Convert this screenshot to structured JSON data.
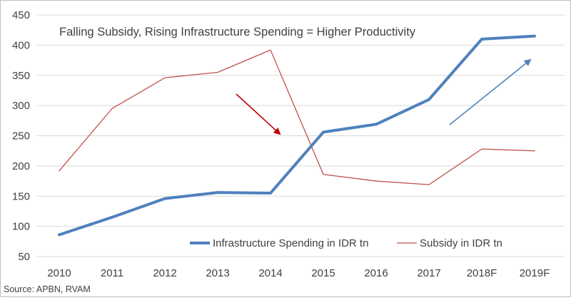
{
  "chart_data": {
    "type": "line",
    "title": "Falling Subsidy, Rising Infrastructure Spending  =  Higher Productivity",
    "source": "Source: APBN, RVAM",
    "categories": [
      "2010",
      "2011",
      "2012",
      "2013",
      "2014",
      "2015",
      "2016",
      "2017",
      "2018F",
      "2019F"
    ],
    "ylim": [
      50,
      450
    ],
    "yticks": [
      50,
      100,
      150,
      200,
      250,
      300,
      350,
      400,
      450
    ],
    "grid": true,
    "legend_position": "bottom-right",
    "series": [
      {
        "name": "Infrastructure Spending in IDR tn",
        "color": "#4f81bd",
        "values": [
          86,
          115,
          146,
          156,
          155,
          256,
          269,
          310,
          410,
          415
        ]
      },
      {
        "name": "Subsidy in IDR tn",
        "color": "#c0504d",
        "values": [
          192,
          295,
          346,
          355,
          392,
          186,
          175,
          169,
          228,
          225
        ]
      }
    ],
    "annotations": [
      {
        "type": "arrow",
        "direction": "down",
        "color": "#c00000"
      },
      {
        "type": "arrow",
        "direction": "up",
        "color": "#4f81bd"
      }
    ]
  }
}
